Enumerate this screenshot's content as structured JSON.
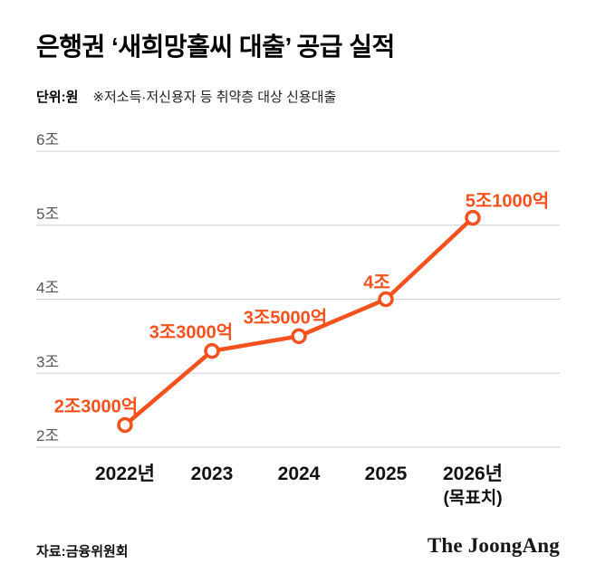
{
  "header": {
    "title": "은행권 ‘새희망홀씨 대출’ 공급 실적",
    "unit_label": "단위:원",
    "note": "※저소득·저신용자 등 취약층 대상 신용대출"
  },
  "chart_data": {
    "type": "line",
    "title": "은행권 ‘새희망홀씨 대출’ 공급 실적",
    "unit": "원 (조 단위)",
    "categories": [
      "2022년",
      "2023",
      "2024",
      "2025",
      "2026년"
    ],
    "category_sublabels": [
      "",
      "",
      "",
      "",
      "(목표치)"
    ],
    "values": [
      2.3,
      3.3,
      3.5,
      4.0,
      5.1
    ],
    "value_labels": [
      "2조3000억",
      "3조3000억",
      "3조5000억",
      "4조",
      "5조1000억"
    ],
    "y_ticks": [
      2,
      3,
      4,
      5,
      6
    ],
    "y_tick_labels": [
      "2조",
      "3조",
      "4조",
      "5조",
      "6조"
    ],
    "ylim": [
      2,
      6
    ],
    "grid": true,
    "legend": "none",
    "line_color": "#f4511e",
    "point_fill": "#ffffff",
    "grid_color": "#cfcfcf"
  },
  "footer": {
    "source": "자료:금융위원회",
    "logo": "The JoongAng"
  }
}
